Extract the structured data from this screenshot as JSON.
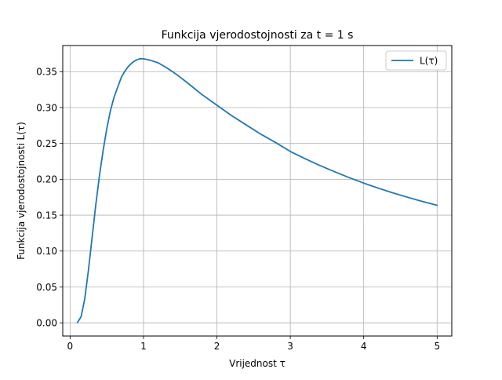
{
  "chart_data": {
    "type": "line",
    "title": "Funkcija vjerodostojnosti za t = 1 s",
    "xlabel": "Vrijednost τ",
    "ylabel": "Funkcija vjerodostojnosti L(τ)",
    "xlim": [
      -0.1,
      5.2
    ],
    "ylim": [
      -0.0184,
      0.3864
    ],
    "grid": true,
    "legend_position": "top-right",
    "x_ticks": [
      0,
      1,
      2,
      3,
      4,
      5
    ],
    "x_tick_labels": [
      "0",
      "1",
      "2",
      "3",
      "4",
      "5"
    ],
    "y_ticks": [
      0.0,
      0.05,
      0.1,
      0.15,
      0.2,
      0.25,
      0.3,
      0.35
    ],
    "y_tick_labels": [
      "0.00",
      "0.05",
      "0.10",
      "0.15",
      "0.20",
      "0.25",
      "0.30",
      "0.35"
    ],
    "series": [
      {
        "name": "L(τ)",
        "color": "#1f77b4",
        "x": [
          0.1,
          0.15,
          0.2,
          0.25,
          0.3,
          0.35,
          0.4,
          0.45,
          0.5,
          0.55,
          0.6,
          0.65,
          0.7,
          0.75,
          0.8,
          0.85,
          0.9,
          0.95,
          1.0,
          1.1,
          1.2,
          1.3,
          1.4,
          1.5,
          1.6,
          1.8,
          2.0,
          2.2,
          2.4,
          2.6,
          2.8,
          3.0,
          3.2,
          3.4,
          3.6,
          3.8,
          4.0,
          4.2,
          4.4,
          4.6,
          4.8,
          5.0
        ],
        "y": [
          0.0005,
          0.0085,
          0.0337,
          0.0733,
          0.1189,
          0.1643,
          0.2052,
          0.2399,
          0.2707,
          0.2958,
          0.3148,
          0.3288,
          0.3426,
          0.3513,
          0.358,
          0.3628,
          0.3661,
          0.368,
          0.3679,
          0.3657,
          0.3623,
          0.3563,
          0.3497,
          0.3423,
          0.3343,
          0.3178,
          0.3033,
          0.2888,
          0.2757,
          0.2628,
          0.2512,
          0.2388,
          0.2288,
          0.2193,
          0.2107,
          0.2024,
          0.1947,
          0.1876,
          0.181,
          0.1749,
          0.1691,
          0.1637
        ]
      }
    ]
  }
}
